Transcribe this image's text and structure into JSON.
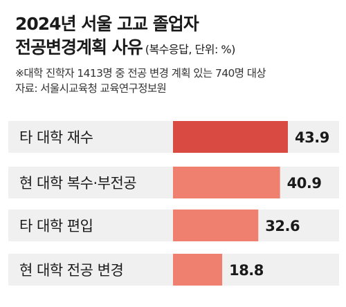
{
  "chart_data": {
    "type": "bar",
    "orientation": "horizontal",
    "title_line1": "2024년 서울 고교 졸업자",
    "title_line2": "전공변경계획 사유",
    "unit": "(복수응답, 단위: %)",
    "note": "※대학 진학자 1413명 중 전공 변경 계획 있는 740명 대상",
    "source": "자료: 서울시교육청 교육연구정보원",
    "categories": [
      "타 대학 재수",
      "현 대학 복수·부전공",
      "타 대학 편입",
      "현 대학 전공 변경"
    ],
    "values": [
      43.9,
      40.9,
      32.6,
      18.8
    ],
    "value_labels": [
      "43.9",
      "40.9",
      "32.6",
      "18.8"
    ],
    "bar_colors": [
      "#d94a43",
      "#ef8070",
      "#ef8070",
      "#ef8070"
    ],
    "background_band_color": "#f0f0f0",
    "xlim": [
      0,
      46
    ]
  }
}
